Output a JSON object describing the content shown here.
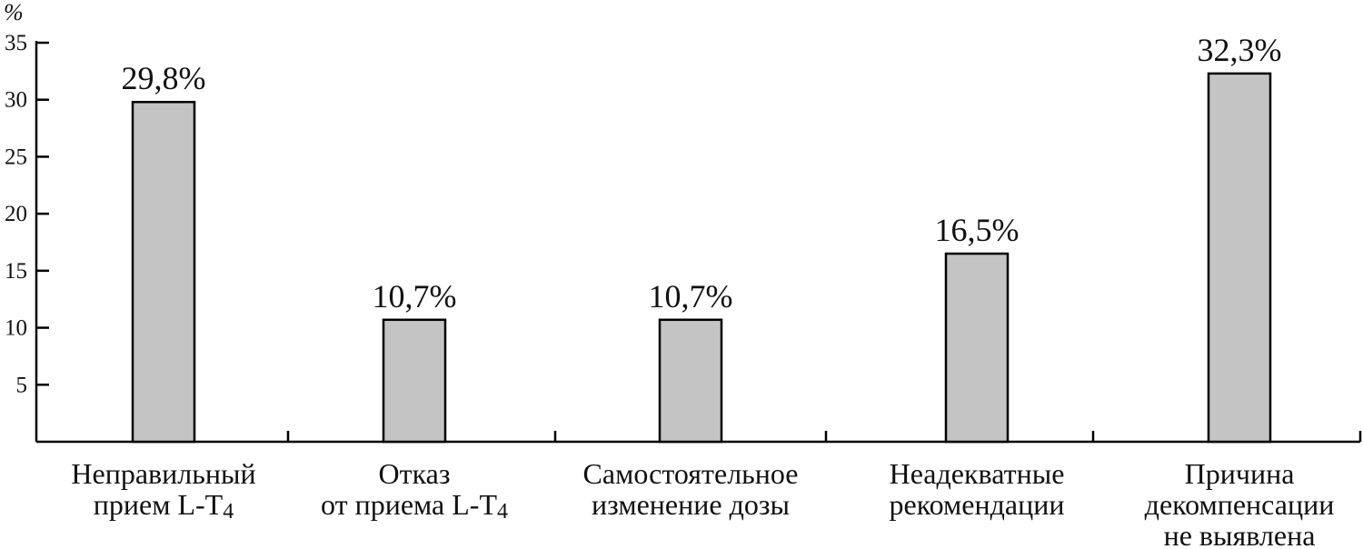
{
  "chart_data": {
    "type": "bar",
    "ylabel": "%",
    "ylim": [
      0,
      35
    ],
    "yticks": [
      5,
      10,
      15,
      20,
      25,
      30,
      35
    ],
    "grid": false,
    "legend": "none",
    "bar_color": "#c4c4c4",
    "categories": [
      {
        "lines": [
          "Неправильный",
          "прием L-T",
          "4"
        ],
        "value": 29.8,
        "label": "29,8%"
      },
      {
        "lines": [
          "Отказ",
          "от приема L-T",
          "4"
        ],
        "value": 10.7,
        "label": "10,7%"
      },
      {
        "lines": [
          "Самостоятельное",
          "изменение дозы"
        ],
        "value": 10.7,
        "label": "10,7%"
      },
      {
        "lines": [
          "Неадекватные",
          "рекомендации"
        ],
        "value": 16.5,
        "label": "16,5%"
      },
      {
        "lines": [
          "Причина",
          "декомпенсации",
          "не выявлена"
        ],
        "value": 32.3,
        "label": "32,3%"
      }
    ]
  }
}
